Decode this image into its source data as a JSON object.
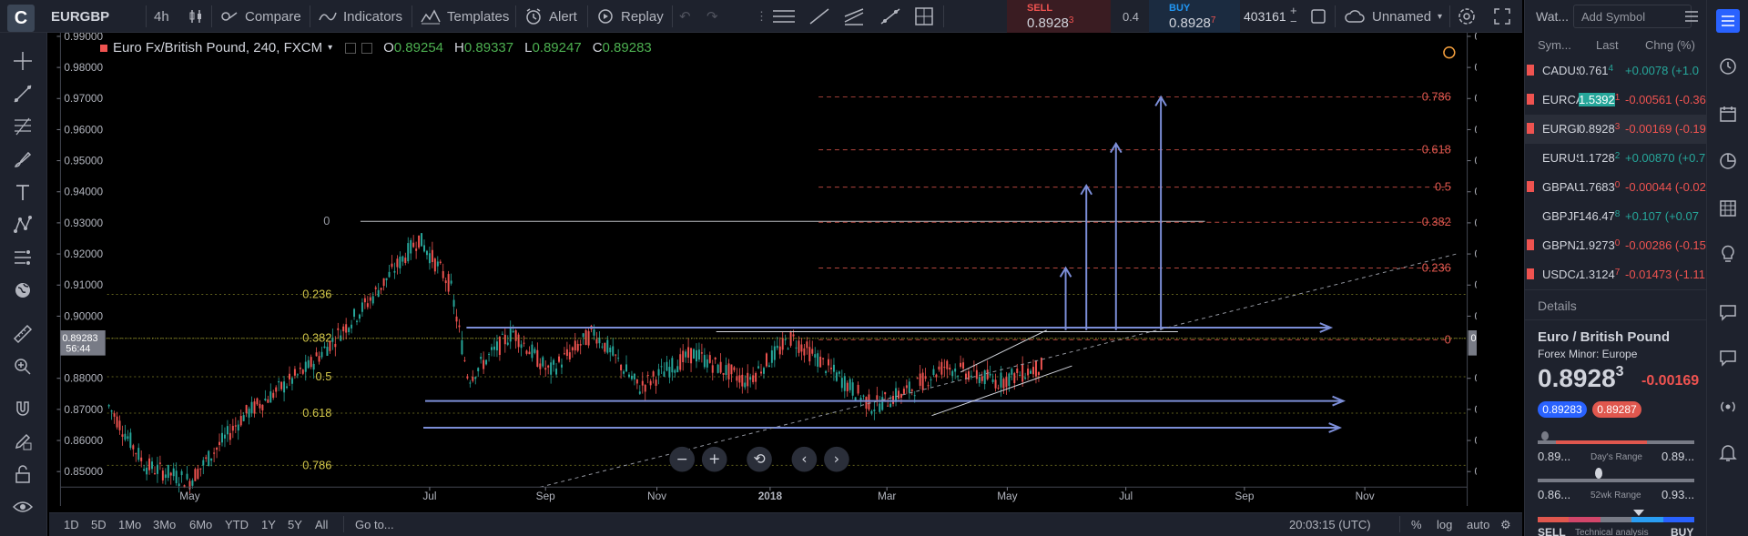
{
  "topbar": {
    "logo": "C",
    "symbol": "EURGBP",
    "interval": "4h",
    "compare_label": "Compare",
    "indicators_label": "Indicators",
    "templates_label": "Templates",
    "alert_label": "Alert",
    "replay_label": "Replay",
    "sell_label": "SELL",
    "sell_price": "0.8928",
    "sell_price_sup": "3",
    "spread": "0.4",
    "buy_label": "BUY",
    "buy_price": "0.8928",
    "buy_price_sup": "7",
    "quantity": "403161",
    "layout_name": "Unnamed"
  },
  "legend": {
    "title": "Euro Fx/British Pound, 240, FXCM",
    "o_label": "O",
    "o_val": "0.89254",
    "h_label": "H",
    "h_val": "0.89337",
    "l_label": "L",
    "l_val": "0.89247",
    "c_label": "C",
    "c_val": "0.89283"
  },
  "chart_data": {
    "type": "candlestick",
    "ylim": [
      0.845,
      0.99
    ],
    "y_ticks": [
      "0.99000",
      "0.98000",
      "0.97000",
      "0.96000",
      "0.95000",
      "0.94000",
      "0.93000",
      "0.92000",
      "0.91000",
      "0.90000",
      "0.88000",
      "0.87000",
      "0.86000",
      "0.85000"
    ],
    "x_ticks": [
      "May",
      "Jul",
      "Sep",
      "Nov",
      "2018",
      "Mar",
      "May",
      "Jul",
      "Sep",
      "Nov"
    ],
    "last_price": "0.89283",
    "last_price_sub": "56:44",
    "fib_left": [
      {
        "label": "0",
        "value": 0.9305
      },
      {
        "label": "0.236",
        "value": 0.907
      },
      {
        "label": "0.382",
        "value": 0.8929
      },
      {
        "label": "0.5",
        "value": 0.8805
      },
      {
        "label": "0.618",
        "value": 0.8688
      },
      {
        "label": "0.786",
        "value": 0.852
      }
    ],
    "fib_right": [
      {
        "label": "0.786",
        "value": 0.9705
      },
      {
        "label": "0.618",
        "value": 0.9535
      },
      {
        "label": "0.5",
        "value": 0.9415
      },
      {
        "label": "0.382",
        "value": 0.9302
      },
      {
        "label": "0.236",
        "value": 0.9155
      },
      {
        "label": "0",
        "value": 0.8924
      }
    ],
    "controls": [
      "−",
      "+",
      "⟲",
      "‹",
      "›"
    ]
  },
  "bottombar": {
    "ranges": [
      "1D",
      "5D",
      "1Mo",
      "3Mo",
      "6Mo",
      "YTD",
      "1Y",
      "5Y",
      "All"
    ],
    "goto_label": "Go to...",
    "time": "20:03:15 (UTC)",
    "percent": "%",
    "log": "log",
    "auto": "auto"
  },
  "watchlist": {
    "tab": "Wat...",
    "add_symbol": "Add Symbol",
    "col_sym": "Sym...",
    "col_last": "Last",
    "col_chg": "Chng (%)",
    "rows": [
      {
        "sym": "CADUSD",
        "last": "0.761",
        "last_sup": "4",
        "chg": "+0.0078 (+1.0",
        "dir": "pos",
        "flag": true
      },
      {
        "sym": "EURCAD",
        "last": "1.5392",
        "last_sup": "1",
        "chg": "-0.00561 (-0.36",
        "dir": "neg",
        "flag": true
      },
      {
        "sym": "EURGBP",
        "last": "0.8928",
        "last_sup": "3",
        "chg": "-0.00169 (-0.19",
        "dir": "neg",
        "flag": true
      },
      {
        "sym": "EURUSD",
        "last": "1.1728",
        "last_sup": "2",
        "chg": "+0.00870 (+0.7",
        "dir": "pos",
        "flag": false
      },
      {
        "sym": "GBPAUD",
        "last": "1.7683",
        "last_sup": "0",
        "chg": "-0.00044 (-0.02",
        "dir": "neg",
        "flag": true
      },
      {
        "sym": "GBPJPY",
        "last": "146.47",
        "last_sup": "8",
        "chg": "+0.107 (+0.07",
        "dir": "pos",
        "flag": false
      },
      {
        "sym": "GBPNZD",
        "last": "1.9273",
        "last_sup": "0",
        "chg": "-0.00286 (-0.15",
        "dir": "neg",
        "flag": true
      },
      {
        "sym": "USDCAD",
        "last": "1.3124",
        "last_sup": "7",
        "chg": "-0.01473 (-1.11",
        "dir": "neg",
        "flag": true
      }
    ],
    "details_label": "Details",
    "detail_name": "Euro / British Pound",
    "detail_type": "Forex Minor: Europe",
    "detail_price": "0.8928",
    "detail_price_sup": "3",
    "detail_change": "-0.00169",
    "bid_badge": "0.89283",
    "ask_badge": "0.89287",
    "day_low": "0.89...",
    "day_range_label": "Day's Range",
    "day_high": "0.89...",
    "wk_low": "0.86...",
    "wk_range_label": "52wk Range",
    "wk_high": "0.93...",
    "sell_label": "SELL",
    "tech_label": "Technical analysis",
    "buy_label": "BUY"
  }
}
